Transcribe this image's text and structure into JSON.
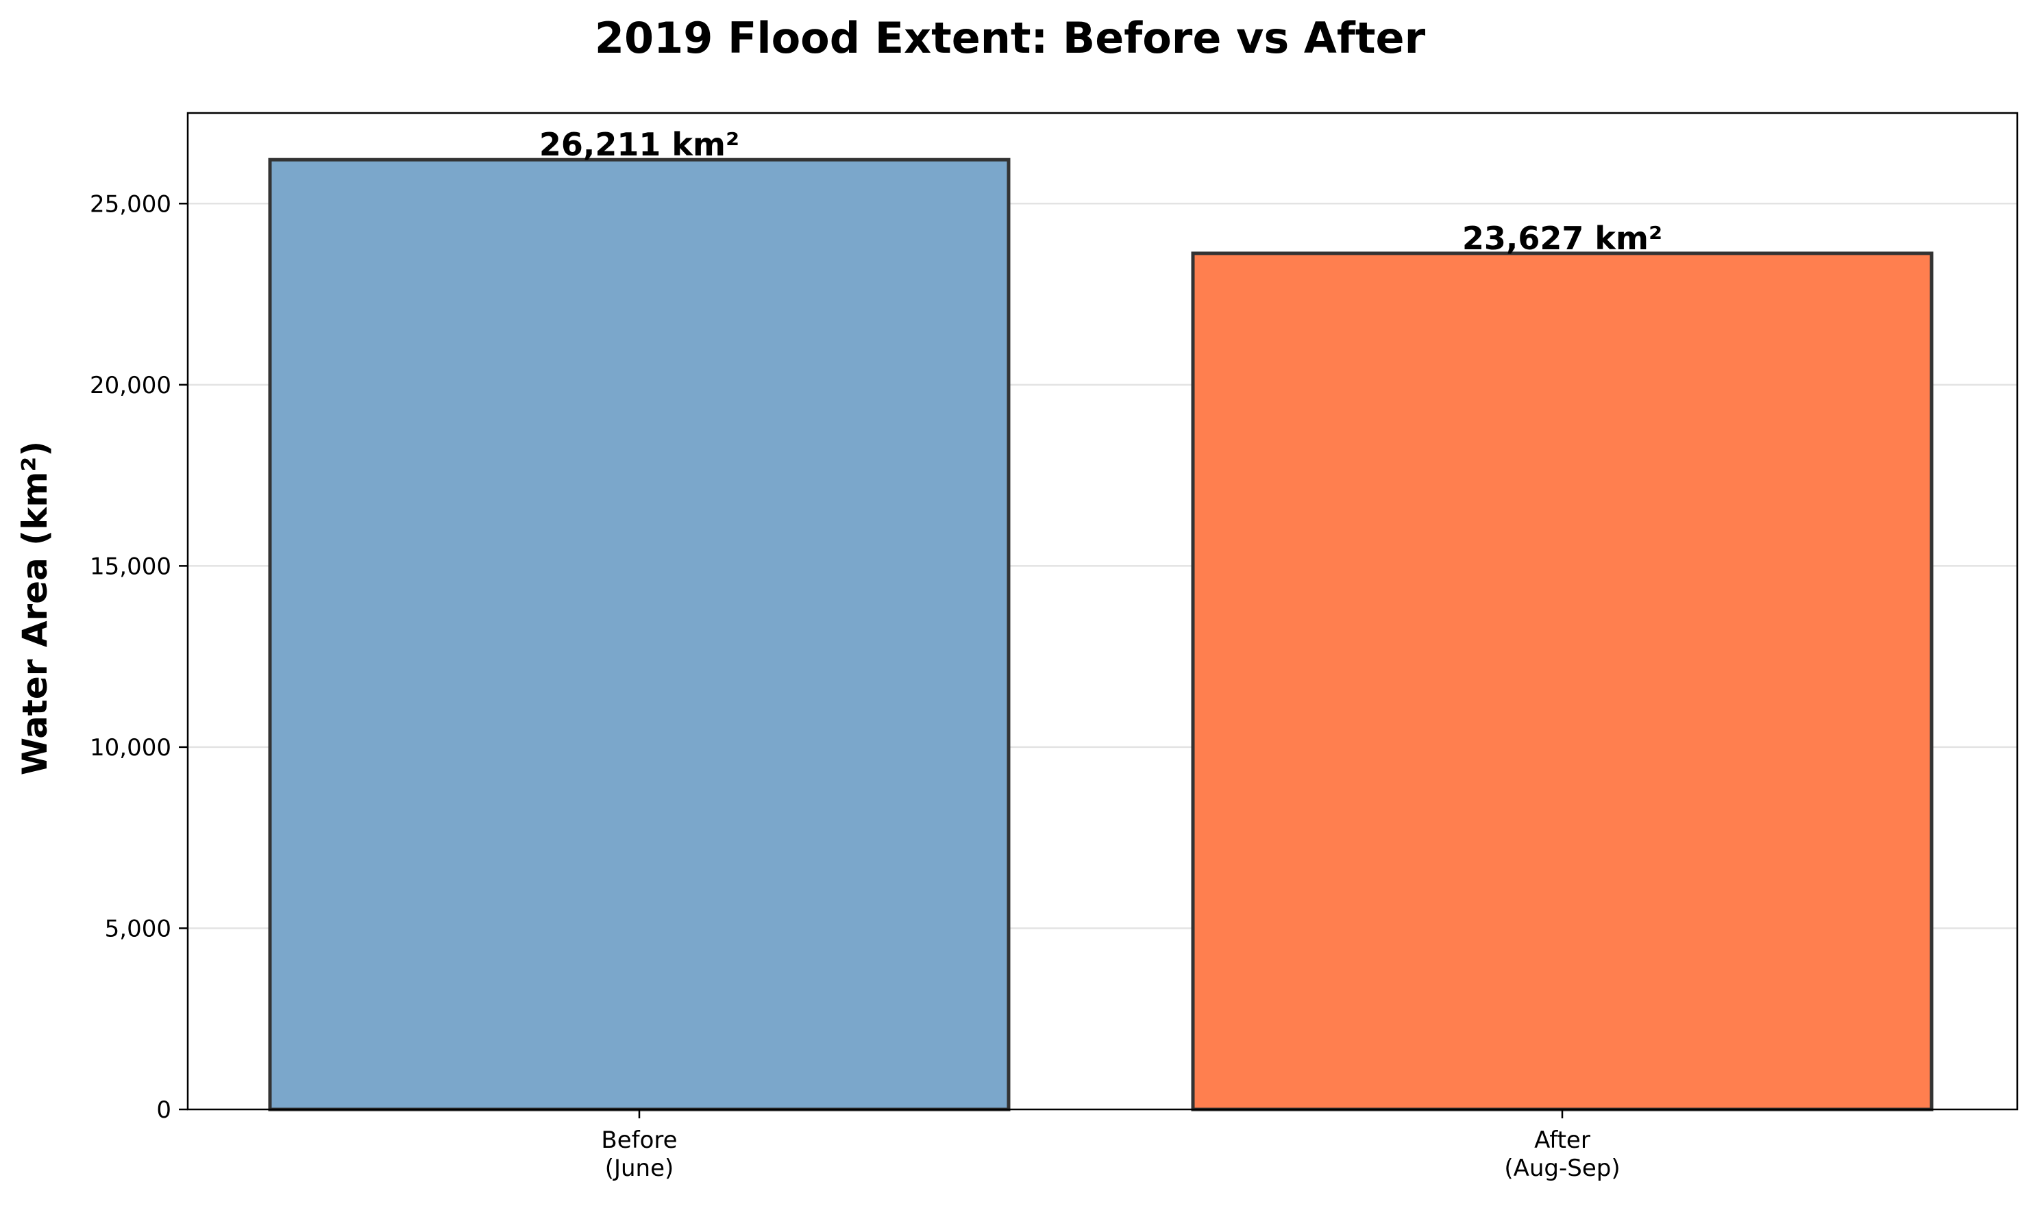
{
  "chart_data": {
    "type": "bar",
    "title": "2019 Flood Extent: Before vs After",
    "xlabel": "",
    "ylabel": "Water Area (km²)",
    "categories": [
      [
        "Before",
        "(June)"
      ],
      [
        "After",
        "(Aug-Sep)"
      ]
    ],
    "values": [
      26211,
      23627
    ],
    "data_labels": [
      "26,211 km²",
      "23,627 km²"
    ],
    "bar_colors": [
      "#7ba7cb",
      "#ff7f4f"
    ],
    "bar_edge_color": "#333333",
    "ylim": [
      0,
      27500
    ],
    "yticks": [
      0,
      5000,
      10000,
      15000,
      20000,
      25000
    ],
    "ytick_labels": [
      "0",
      "5,000",
      "10,000",
      "15,000",
      "20,000",
      "25,000"
    ],
    "grid": "horizontal",
    "legend": "none"
  }
}
